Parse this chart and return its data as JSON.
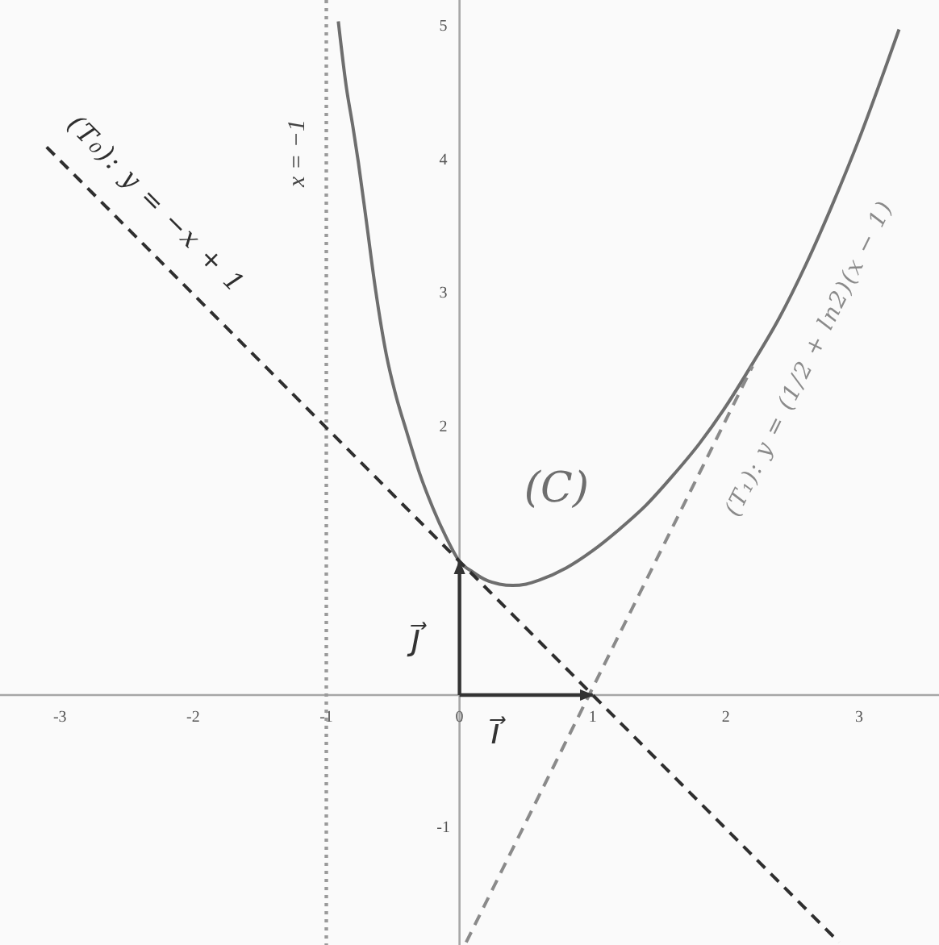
{
  "chart_data": {
    "type": "line",
    "xlim": [
      -3.45,
      3.6
    ],
    "ylim": [
      -1.87,
      5.2
    ],
    "xticks": [
      -3,
      -2,
      -1,
      0,
      1,
      2,
      3
    ],
    "yticks": [
      -1,
      2,
      3,
      4,
      5
    ],
    "series": [
      {
        "name": "(C)",
        "color": "#6e6e6e",
        "line_style": "solid",
        "x": [
          -0.91,
          -0.85,
          -0.8,
          -0.76,
          -0.7,
          -0.63,
          -0.55,
          -0.48,
          -0.4,
          -0.3,
          -0.2,
          -0.1,
          0,
          0.1,
          0.2,
          0.3,
          0.4,
          0.5,
          0.6,
          0.8,
          1.0,
          1.2,
          1.4,
          1.6,
          1.8,
          2.0,
          2.2,
          2.4,
          2.6,
          2.8,
          3.0,
          3.2,
          3.3
        ],
        "values": [
          5.04,
          4.55,
          4.25,
          3.99,
          3.55,
          3.03,
          2.55,
          2.25,
          1.98,
          1.66,
          1.4,
          1.18,
          1.0,
          0.92,
          0.86,
          0.83,
          0.82,
          0.83,
          0.86,
          0.95,
          1.08,
          1.24,
          1.42,
          1.64,
          1.88,
          2.16,
          2.48,
          2.82,
          3.22,
          3.67,
          4.16,
          4.7,
          4.98
        ]
      },
      {
        "name": "(T₀): y = −x + 1",
        "color": "#2e2e2e",
        "line_style": "dashed",
        "x": [
          -3.1,
          2.85
        ],
        "values": [
          4.1,
          -1.85
        ]
      },
      {
        "name": "(T₁): y = (1/2 + ln2)(x − 1)",
        "color": "#8a8a8a",
        "line_style": "dashed",
        "x": [
          0.05,
          2.2
        ],
        "values": [
          -1.85,
          2.46
        ]
      },
      {
        "name": "i⃗",
        "color": "#333333",
        "line_style": "solid",
        "x": [
          0,
          1
        ],
        "values": [
          0,
          0
        ]
      },
      {
        "name": "j⃗",
        "color": "#333333",
        "line_style": "solid",
        "x": [
          0,
          0
        ],
        "values": [
          0,
          1
        ]
      }
    ],
    "ref_lines": [
      {
        "axis": "x",
        "value": -1,
        "label": "x = −1",
        "color": "#9a9a9a",
        "line_style": "dotted"
      }
    ]
  }
}
